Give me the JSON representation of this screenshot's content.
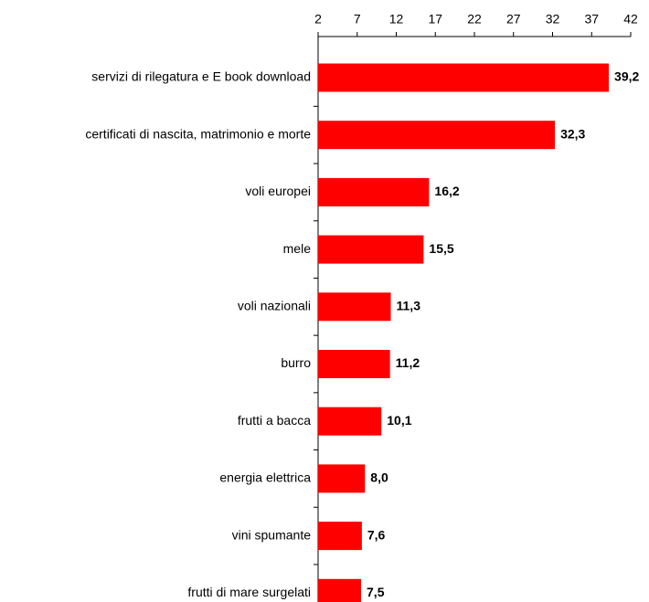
{
  "chart_data": {
    "type": "bar",
    "orientation": "horizontal",
    "categories": [
      "servizi di rilegatura e E book download",
      "certificati di nascita, matrimonio e morte",
      "voli europei",
      "mele",
      "voli nazionali",
      "burro",
      "frutti a bacca",
      "energia elettrica",
      "vini spumante",
      "frutti di mare surgelati"
    ],
    "values": [
      39.2,
      32.3,
      16.2,
      15.5,
      11.3,
      11.2,
      10.1,
      8.0,
      7.6,
      7.5
    ],
    "value_labels": [
      "39,2",
      "32,3",
      "16,2",
      "15,5",
      "11,3",
      "11,2",
      "10,1",
      "8,0",
      "7,6",
      "7,5"
    ],
    "color": "#ff0000",
    "xlim": [
      2,
      42
    ],
    "xticks": [
      2,
      7,
      12,
      17,
      22,
      27,
      32,
      37,
      42
    ]
  }
}
